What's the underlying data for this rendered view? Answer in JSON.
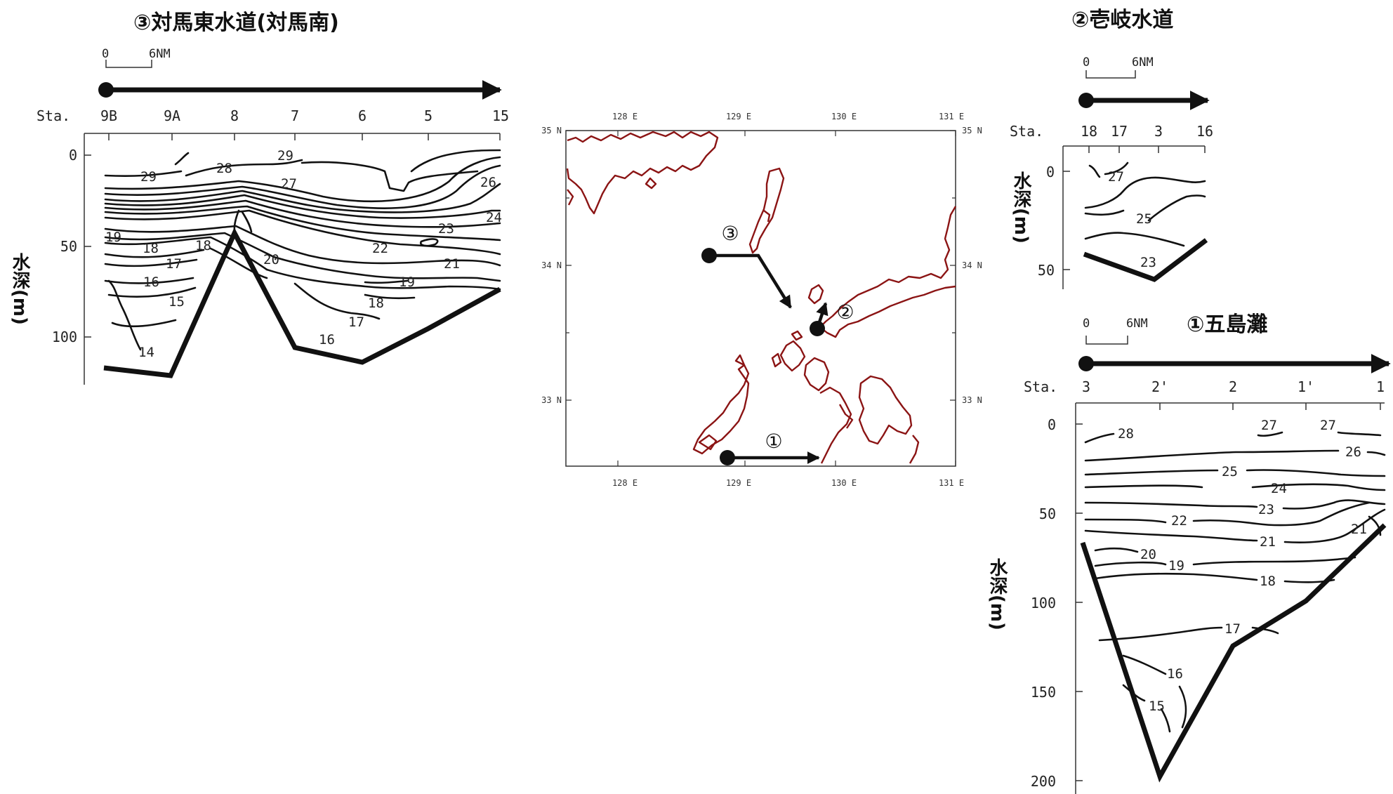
{
  "panels": {
    "tsushima": {
      "title": "③対馬東水道(対馬南)",
      "scale_labels": [
        "0",
        "6NM"
      ],
      "sta_label": "Sta.",
      "stations": [
        "9B",
        "9A",
        "8",
        "7",
        "6",
        "5",
        "15"
      ],
      "depth_ticks": [
        "0",
        "50",
        "100"
      ],
      "ylabel": "水深(m)",
      "contour_labels": [
        "29",
        "28",
        "29",
        "27",
        "26",
        "24",
        "23",
        "19",
        "18",
        "18",
        "22",
        "17",
        "20",
        "21",
        "16",
        "19",
        "15",
        "18",
        "17",
        "16",
        "14"
      ]
    },
    "iki": {
      "title": "②壱岐水道",
      "scale_labels": [
        "0",
        "6NM"
      ],
      "sta_label": "Sta.",
      "stations": [
        "18",
        "17",
        "3",
        "16"
      ],
      "depth_ticks": [
        "0",
        "50"
      ],
      "ylabel": "水深(m)",
      "contour_labels": [
        "27",
        "25",
        "23"
      ]
    },
    "goto": {
      "title": "①五島灘",
      "scale_labels": [
        "0",
        "6NM"
      ],
      "sta_label": "Sta.",
      "stations": [
        "3",
        "2'",
        "2",
        "1'",
        "1"
      ],
      "depth_ticks": [
        "0",
        "50",
        "100",
        "150",
        "200"
      ],
      "ylabel": "水深(m)",
      "contour_labels": [
        "28",
        "27",
        "27",
        "26",
        "25",
        "24",
        "23",
        "22",
        "21",
        "21",
        "20",
        "19",
        "18",
        "17",
        "16",
        "15"
      ]
    }
  },
  "map": {
    "lon_labels": [
      "128 E",
      "129 E",
      "130 E",
      "131 E"
    ],
    "lat_labels": [
      "35 N",
      "34 N",
      "33 N"
    ],
    "markers": [
      "③",
      "②",
      "①"
    ],
    "coast_color": "#8b1414"
  }
}
